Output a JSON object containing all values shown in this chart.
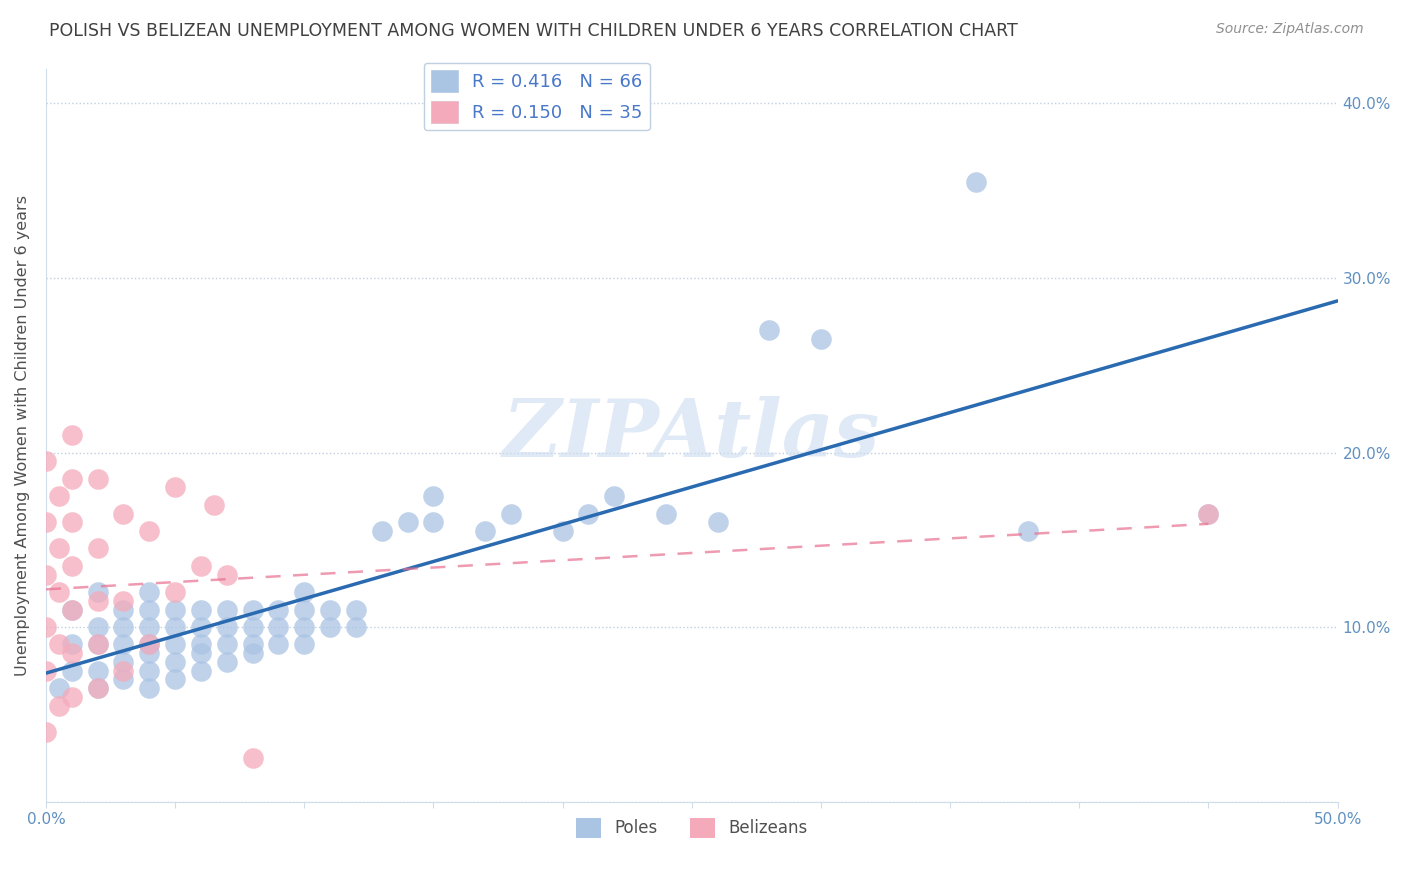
{
  "title": "POLISH VS BELIZEAN UNEMPLOYMENT AMONG WOMEN WITH CHILDREN UNDER 6 YEARS CORRELATION CHART",
  "source": "Source: ZipAtlas.com",
  "ylabel": "Unemployment Among Women with Children Under 6 years",
  "xlabel": "",
  "xlim": [
    0.0,
    0.5
  ],
  "ylim": [
    0.0,
    0.42
  ],
  "xticks": [
    0.0,
    0.05,
    0.1,
    0.15,
    0.2,
    0.25,
    0.3,
    0.35,
    0.4,
    0.45,
    0.5
  ],
  "yticks": [
    0.0,
    0.1,
    0.2,
    0.3,
    0.4
  ],
  "ytick_labels_right": [
    "",
    "10.0%",
    "20.0%",
    "30.0%",
    "40.0%"
  ],
  "xtick_labels": [
    "0.0%",
    "",
    "",
    "",
    "",
    "",
    "",
    "",
    "",
    "",
    "50.0%"
  ],
  "poles_R": 0.416,
  "poles_N": 66,
  "belizeans_R": 0.15,
  "belizeans_N": 35,
  "poles_color": "#aac4e4",
  "belizeans_color": "#f5aabb",
  "poles_line_color": "#2a6ab0",
  "belizeans_line_color": "#e87090",
  "legend_text_color": "#4878c8",
  "watermark_color": "#ccdcf0",
  "poles_x": [
    0.005,
    0.01,
    0.01,
    0.01,
    0.02,
    0.02,
    0.02,
    0.02,
    0.02,
    0.03,
    0.03,
    0.03,
    0.03,
    0.03,
    0.04,
    0.04,
    0.04,
    0.04,
    0.04,
    0.04,
    0.04,
    0.05,
    0.05,
    0.05,
    0.05,
    0.05,
    0.06,
    0.06,
    0.06,
    0.06,
    0.06,
    0.07,
    0.07,
    0.07,
    0.07,
    0.08,
    0.08,
    0.08,
    0.08,
    0.09,
    0.09,
    0.09,
    0.1,
    0.1,
    0.1,
    0.1,
    0.11,
    0.11,
    0.12,
    0.12,
    0.13,
    0.14,
    0.15,
    0.15,
    0.17,
    0.18,
    0.2,
    0.21,
    0.22,
    0.24,
    0.26,
    0.28,
    0.3,
    0.36,
    0.38,
    0.45
  ],
  "poles_y": [
    0.065,
    0.075,
    0.09,
    0.11,
    0.065,
    0.075,
    0.09,
    0.1,
    0.12,
    0.07,
    0.08,
    0.09,
    0.1,
    0.11,
    0.065,
    0.075,
    0.085,
    0.09,
    0.1,
    0.11,
    0.12,
    0.07,
    0.08,
    0.09,
    0.1,
    0.11,
    0.075,
    0.085,
    0.09,
    0.1,
    0.11,
    0.08,
    0.09,
    0.1,
    0.11,
    0.085,
    0.09,
    0.1,
    0.11,
    0.09,
    0.1,
    0.11,
    0.09,
    0.1,
    0.11,
    0.12,
    0.1,
    0.11,
    0.1,
    0.11,
    0.155,
    0.16,
    0.16,
    0.175,
    0.155,
    0.165,
    0.155,
    0.165,
    0.175,
    0.165,
    0.16,
    0.27,
    0.265,
    0.355,
    0.155,
    0.165
  ],
  "belizeans_x": [
    0.0,
    0.0,
    0.0,
    0.0,
    0.0,
    0.0,
    0.005,
    0.005,
    0.005,
    0.005,
    0.005,
    0.01,
    0.01,
    0.01,
    0.01,
    0.01,
    0.01,
    0.01,
    0.02,
    0.02,
    0.02,
    0.02,
    0.02,
    0.03,
    0.03,
    0.03,
    0.04,
    0.04,
    0.05,
    0.05,
    0.06,
    0.065,
    0.07,
    0.08,
    0.45
  ],
  "belizeans_y": [
    0.04,
    0.075,
    0.1,
    0.13,
    0.16,
    0.195,
    0.055,
    0.09,
    0.12,
    0.145,
    0.175,
    0.06,
    0.085,
    0.11,
    0.135,
    0.16,
    0.185,
    0.21,
    0.065,
    0.09,
    0.115,
    0.145,
    0.185,
    0.075,
    0.115,
    0.165,
    0.09,
    0.155,
    0.12,
    0.18,
    0.135,
    0.17,
    0.13,
    0.025,
    0.165
  ],
  "background_color": "#ffffff",
  "grid_color": "#c0cfe0",
  "title_color": "#404040",
  "source_color": "#909090"
}
